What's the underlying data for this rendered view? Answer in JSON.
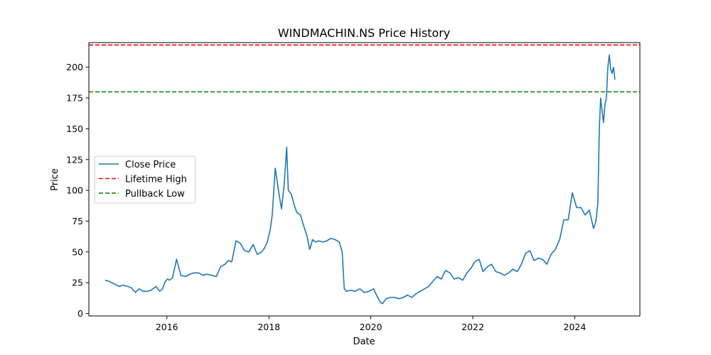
{
  "chart_data": {
    "type": "line",
    "title": "WINDMACHIN.NS Price History",
    "xlabel": "Date",
    "ylabel": "Price",
    "xlim": [
      "2014-06-21",
      "2025-04-12"
    ],
    "ylim": [
      -2,
      220
    ],
    "x_ticks": [
      "2016-01-01",
      "2018-01-01",
      "2020-01-01",
      "2022-01-01",
      "2024-01-01"
    ],
    "x_tick_labels": [
      "2016",
      "2018",
      "2020",
      "2022",
      "2024"
    ],
    "y_ticks": [
      0,
      25,
      50,
      75,
      100,
      125,
      150,
      175,
      200
    ],
    "y_tick_labels": [
      "0",
      "25",
      "50",
      "75",
      "100",
      "125",
      "150",
      "175",
      "200"
    ],
    "grid": false,
    "legend_position": "center-left",
    "series": [
      {
        "name": "Close Price",
        "color": "#1f77b4",
        "style": "solid",
        "x": [
          "2014-10-15",
          "2014-11-15",
          "2014-12-20",
          "2015-01-25",
          "2015-02-20",
          "2015-03-25",
          "2015-04-20",
          "2015-05-20",
          "2015-06-15",
          "2015-07-15",
          "2015-08-15",
          "2015-09-10",
          "2015-10-15",
          "2015-11-10",
          "2015-12-01",
          "2015-12-20",
          "2016-01-05",
          "2016-01-20",
          "2016-02-10",
          "2016-03-10",
          "2016-04-10",
          "2016-05-15",
          "2016-06-15",
          "2016-07-15",
          "2016-08-15",
          "2016-09-15",
          "2016-10-15",
          "2016-11-15",
          "2016-12-20",
          "2017-01-20",
          "2017-02-20",
          "2017-03-15",
          "2017-04-10",
          "2017-05-10",
          "2017-06-10",
          "2017-07-10",
          "2017-08-10",
          "2017-09-10",
          "2017-10-10",
          "2017-11-10",
          "2017-11-30",
          "2017-12-20",
          "2018-01-10",
          "2018-01-25",
          "2018-02-15",
          "2018-03-10",
          "2018-04-01",
          "2018-04-20",
          "2018-05-08",
          "2018-05-20",
          "2018-06-10",
          "2018-07-01",
          "2018-07-20",
          "2018-08-15",
          "2018-09-10",
          "2018-10-01",
          "2018-10-20",
          "2018-11-10",
          "2018-12-01",
          "2018-12-25",
          "2019-01-20",
          "2019-02-20",
          "2019-03-20",
          "2019-04-20",
          "2019-05-20",
          "2019-06-10",
          "2019-06-25",
          "2019-07-10",
          "2019-08-10",
          "2019-09-10",
          "2019-10-15",
          "2019-11-15",
          "2019-12-20",
          "2020-01-20",
          "2020-02-15",
          "2020-03-10",
          "2020-03-25",
          "2020-04-20",
          "2020-05-20",
          "2020-06-20",
          "2020-07-20",
          "2020-08-20",
          "2020-09-20",
          "2020-10-20",
          "2020-11-20",
          "2020-12-20",
          "2021-01-20",
          "2021-02-20",
          "2021-03-20",
          "2021-04-20",
          "2021-05-20",
          "2021-06-20",
          "2021-07-20",
          "2021-08-20",
          "2021-09-20",
          "2021-10-20",
          "2021-11-20",
          "2021-12-20",
          "2022-01-15",
          "2022-02-15",
          "2022-03-15",
          "2022-04-15",
          "2022-05-15",
          "2022-06-15",
          "2022-07-15",
          "2022-08-15",
          "2022-09-15",
          "2022-10-15",
          "2022-11-15",
          "2022-12-15",
          "2023-01-15",
          "2023-02-15",
          "2023-03-15",
          "2023-04-15",
          "2023-05-15",
          "2023-06-15",
          "2023-07-15",
          "2023-08-15",
          "2023-09-15",
          "2023-10-15",
          "2023-11-15",
          "2023-12-15",
          "2024-01-15",
          "2024-02-15",
          "2024-03-15",
          "2024-04-15",
          "2024-05-15",
          "2024-06-01",
          "2024-06-15",
          "2024-06-25",
          "2024-07-05",
          "2024-07-15",
          "2024-07-25",
          "2024-08-05",
          "2024-08-15",
          "2024-08-25",
          "2024-09-05",
          "2024-09-15",
          "2024-09-25",
          "2024-10-05",
          "2024-10-15"
        ],
        "y": [
          27,
          26,
          24,
          22,
          23,
          22,
          21,
          17,
          20,
          18,
          18,
          19,
          22,
          18,
          20,
          26,
          28,
          27,
          29,
          44,
          31,
          30,
          32,
          33,
          33,
          31,
          32,
          31,
          30,
          38,
          40,
          43,
          42,
          59,
          57,
          51,
          50,
          56,
          48,
          50,
          53,
          58,
          68,
          80,
          118,
          100,
          85,
          104,
          135,
          100,
          97,
          88,
          82,
          80,
          70,
          63,
          52,
          60,
          58,
          59,
          58,
          59,
          61,
          60,
          58,
          50,
          20,
          18,
          19,
          18,
          20,
          17,
          18,
          20,
          14,
          9,
          8,
          12,
          13,
          13,
          12,
          13,
          15,
          13,
          16,
          18,
          20,
          22,
          26,
          30,
          28,
          35,
          33,
          28,
          29,
          27,
          33,
          37,
          42,
          44,
          34,
          38,
          40,
          34,
          33,
          31,
          33,
          36,
          34,
          40,
          49,
          51,
          43,
          45,
          44,
          40,
          48,
          52,
          60,
          76,
          76,
          98,
          86,
          86,
          80,
          84,
          69,
          75,
          90,
          150,
          175,
          165,
          155,
          170,
          175,
          200,
          210,
          198,
          195,
          200,
          190
        ]
      }
    ],
    "reference_lines": [
      {
        "name": "Lifetime High",
        "y": 218,
        "color": "#ff0000",
        "style": "dashed"
      },
      {
        "name": "Pullback Low",
        "y": 180,
        "color": "#008000",
        "style": "dashed"
      }
    ]
  }
}
